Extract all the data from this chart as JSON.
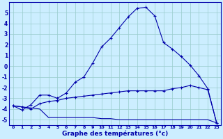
{
  "title": "Graphe des températures (°c)",
  "bg_color": "#cceeff",
  "grid_color": "#99cccc",
  "line_color": "#0000aa",
  "xlim": [
    -0.5,
    23.5
  ],
  "ylim": [
    -5.5,
    6.0
  ],
  "xticks": [
    0,
    1,
    2,
    3,
    4,
    5,
    6,
    7,
    8,
    9,
    10,
    11,
    12,
    13,
    14,
    15,
    16,
    17,
    18,
    19,
    20,
    21,
    22,
    23
  ],
  "yticks": [
    -5,
    -4,
    -3,
    -2,
    -1,
    0,
    1,
    2,
    3,
    4,
    5
  ],
  "hours": [
    0,
    1,
    2,
    3,
    4,
    5,
    6,
    7,
    8,
    9,
    10,
    11,
    12,
    13,
    14,
    15,
    16,
    17,
    18,
    19,
    20,
    21,
    22,
    23
  ],
  "temp_main": [
    -3.7,
    -4.1,
    -3.6,
    -2.7,
    -2.7,
    -3.0,
    -2.5,
    -1.5,
    -1.0,
    0.3,
    1.8,
    2.6,
    3.6,
    4.6,
    5.4,
    5.5,
    4.7,
    2.2,
    1.6,
    0.9,
    0.1,
    -0.9,
    -2.1,
    -5.3
  ],
  "temp_mid": [
    -3.7,
    -3.8,
    -4.0,
    -3.5,
    -3.3,
    -3.2,
    -3.0,
    -2.9,
    -2.8,
    -2.7,
    -2.6,
    -2.5,
    -2.4,
    -2.3,
    -2.3,
    -2.3,
    -2.3,
    -2.3,
    -2.1,
    -2.0,
    -1.8,
    -2.0,
    -2.2,
    -5.3
  ],
  "temp_low": [
    -3.7,
    -3.8,
    -3.9,
    -4.0,
    -4.8,
    -4.8,
    -4.8,
    -4.8,
    -4.8,
    -4.8,
    -4.9,
    -4.9,
    -5.0,
    -5.0,
    -5.0,
    -5.0,
    -5.0,
    -5.0,
    -5.0,
    -5.0,
    -5.0,
    -5.0,
    -5.0,
    -5.3
  ]
}
